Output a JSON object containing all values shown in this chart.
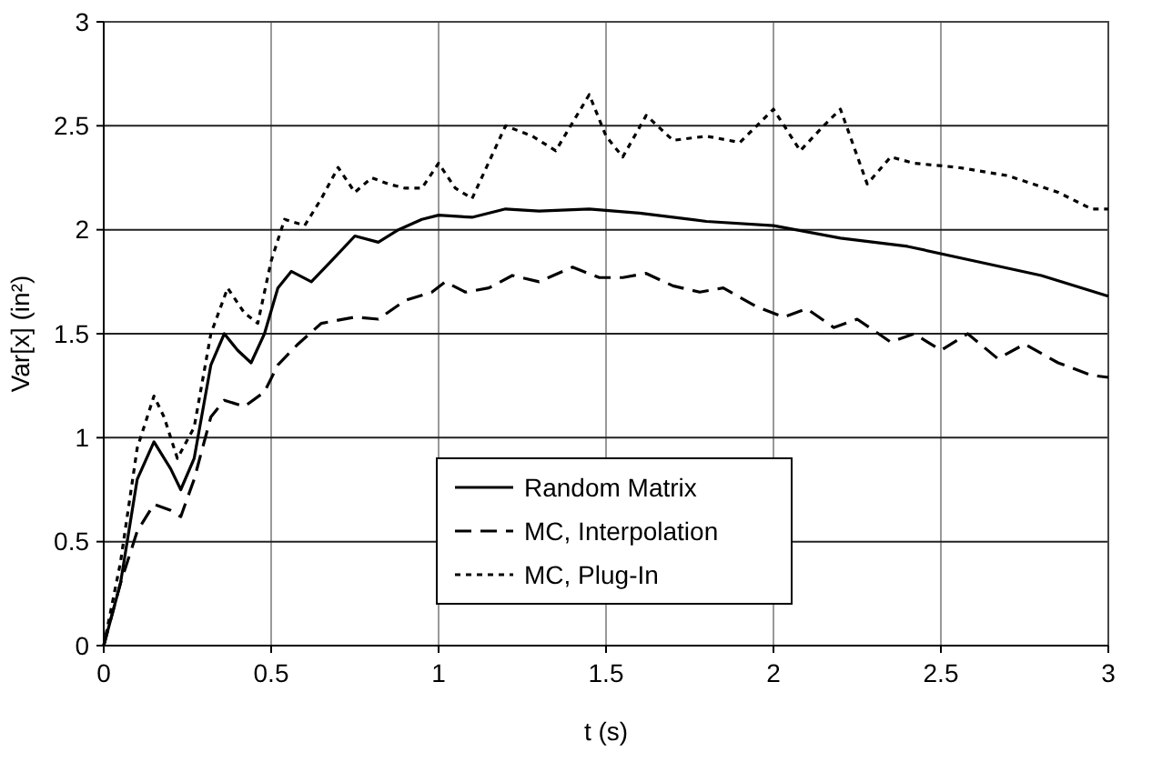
{
  "chart_data": {
    "type": "line",
    "xlabel": "t (s)",
    "ylabel": "Var[x] (in²)",
    "xlim": [
      0,
      3
    ],
    "ylim": [
      0,
      3
    ],
    "xticks": [
      0,
      {
        "value": 0.5,
        "label": "0.5"
      },
      1,
      {
        "value": 1.5,
        "label": "1.5"
      },
      2,
      {
        "value": 2.5,
        "label": "2.5"
      },
      3
    ],
    "yticks": [
      0,
      {
        "value": 0.5,
        "label": "0.5"
      },
      1,
      {
        "value": 1.5,
        "label": "1.5"
      },
      2,
      {
        "value": 2.5,
        "label": "2.5"
      },
      3
    ],
    "grid": true,
    "legend": "bottom",
    "marker": "none",
    "series": [
      {
        "name": "Random Matrix",
        "color": "#000000",
        "line_style": "solid",
        "x": [
          0,
          0.05,
          0.1,
          0.15,
          0.2,
          0.23,
          0.27,
          0.32,
          0.36,
          0.4,
          0.44,
          0.48,
          0.52,
          0.56,
          0.62,
          0.68,
          0.75,
          0.82,
          0.88,
          0.95,
          1.0,
          1.1,
          1.2,
          1.3,
          1.45,
          1.6,
          1.8,
          2.0,
          2.2,
          2.4,
          2.6,
          2.8,
          3.0
        ],
        "values": [
          0,
          0.3,
          0.8,
          0.98,
          0.85,
          0.75,
          0.9,
          1.35,
          1.5,
          1.42,
          1.36,
          1.5,
          1.72,
          1.8,
          1.75,
          1.85,
          1.97,
          1.94,
          2.0,
          2.05,
          2.07,
          2.06,
          2.1,
          2.09,
          2.1,
          2.08,
          2.04,
          2.02,
          1.96,
          1.92,
          1.85,
          1.78,
          1.68
        ]
      },
      {
        "name": "MC, Interpolation",
        "color": "#000000",
        "line_style": "dashed",
        "x": [
          0,
          0.05,
          0.1,
          0.15,
          0.2,
          0.23,
          0.27,
          0.32,
          0.36,
          0.42,
          0.48,
          0.52,
          0.58,
          0.65,
          0.75,
          0.82,
          0.9,
          0.98,
          1.02,
          1.08,
          1.15,
          1.22,
          1.3,
          1.4,
          1.48,
          1.55,
          1.62,
          1.7,
          1.78,
          1.85,
          1.95,
          2.03,
          2.1,
          2.18,
          2.25,
          2.35,
          2.42,
          2.5,
          2.58,
          2.67,
          2.75,
          2.85,
          2.95,
          3.0
        ],
        "values": [
          0,
          0.3,
          0.55,
          0.68,
          0.65,
          0.62,
          0.8,
          1.1,
          1.18,
          1.15,
          1.22,
          1.35,
          1.45,
          1.55,
          1.58,
          1.57,
          1.66,
          1.7,
          1.75,
          1.7,
          1.72,
          1.78,
          1.75,
          1.82,
          1.77,
          1.77,
          1.79,
          1.73,
          1.7,
          1.72,
          1.63,
          1.58,
          1.62,
          1.53,
          1.57,
          1.46,
          1.5,
          1.42,
          1.5,
          1.38,
          1.45,
          1.36,
          1.3,
          1.29
        ]
      },
      {
        "name": "MC, Plug-In",
        "color": "#000000",
        "line_style": "dotted",
        "x": [
          0,
          0.05,
          0.1,
          0.15,
          0.18,
          0.22,
          0.27,
          0.32,
          0.37,
          0.42,
          0.46,
          0.5,
          0.54,
          0.6,
          0.65,
          0.7,
          0.75,
          0.8,
          0.85,
          0.9,
          0.95,
          1.0,
          1.05,
          1.1,
          1.2,
          1.28,
          1.35,
          1.45,
          1.5,
          1.55,
          1.62,
          1.7,
          1.8,
          1.9,
          2.0,
          2.08,
          2.15,
          2.2,
          2.28,
          2.35,
          2.42,
          2.55,
          2.7,
          2.85,
          2.95,
          3.0
        ],
        "values": [
          0,
          0.4,
          0.95,
          1.2,
          1.1,
          0.9,
          1.05,
          1.5,
          1.72,
          1.6,
          1.55,
          1.85,
          2.05,
          2.02,
          2.15,
          2.3,
          2.18,
          2.25,
          2.22,
          2.2,
          2.2,
          2.32,
          2.2,
          2.15,
          2.5,
          2.45,
          2.38,
          2.65,
          2.45,
          2.35,
          2.55,
          2.43,
          2.45,
          2.42,
          2.58,
          2.38,
          2.5,
          2.58,
          2.22,
          2.35,
          2.32,
          2.3,
          2.26,
          2.18,
          2.1,
          2.1
        ]
      }
    ]
  }
}
